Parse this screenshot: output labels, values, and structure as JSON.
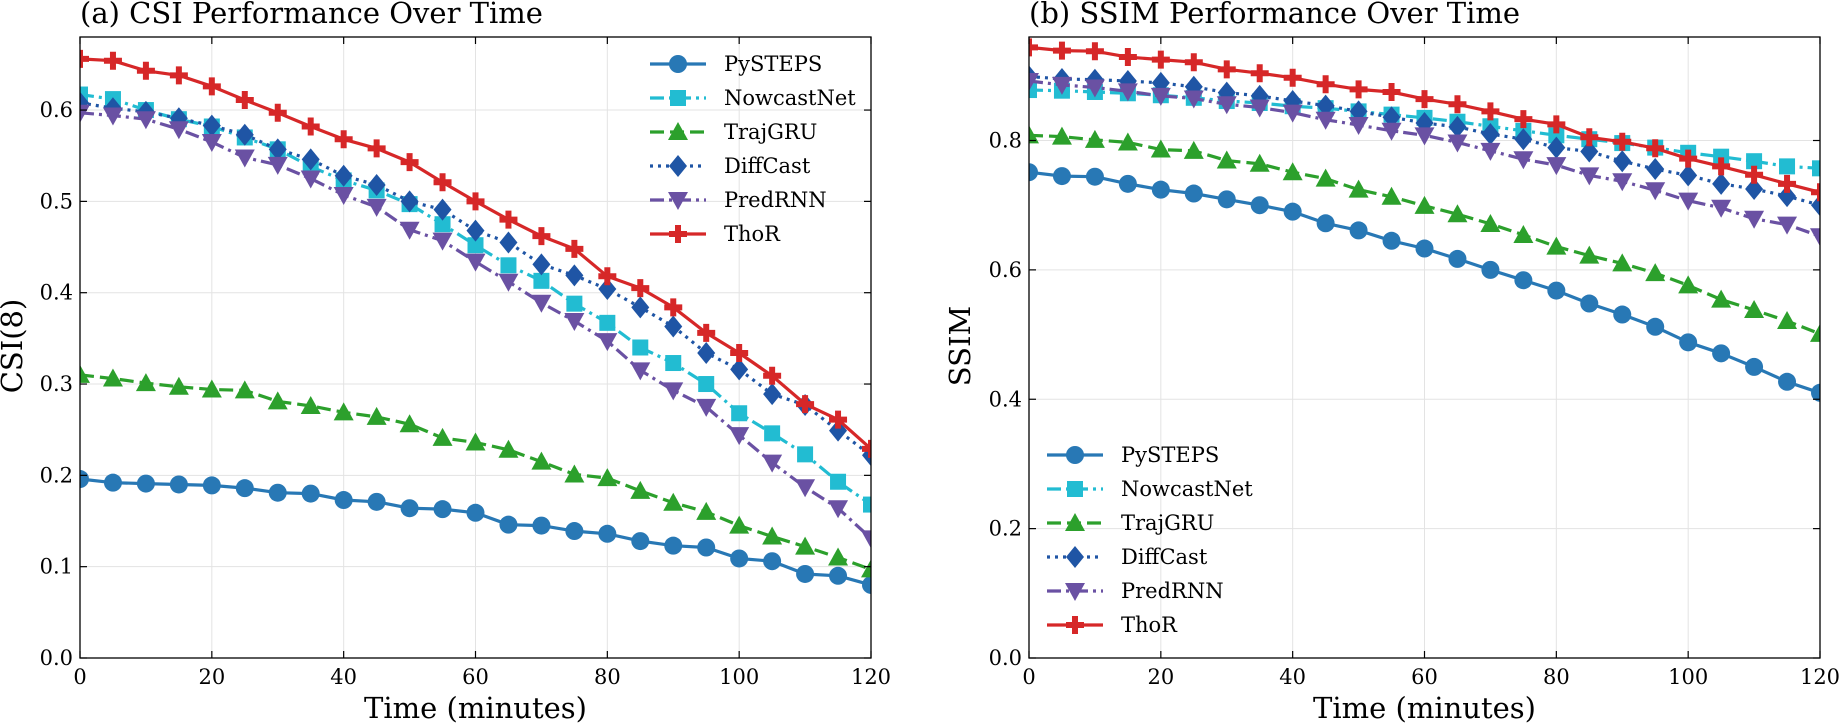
{
  "chart_data": [
    {
      "type": "line",
      "title": "(a) CSI Performance Over Time",
      "xlabel": "Time (minutes)",
      "ylabel": "CSI(8)",
      "xlim": [
        0,
        120
      ],
      "ylim": [
        0.0,
        0.68
      ],
      "xticks": [
        0,
        20,
        40,
        60,
        80,
        100,
        120
      ],
      "xtick_labels": [
        "0",
        "20",
        "40",
        "60",
        "80",
        "100",
        "120"
      ],
      "yticks": [
        0.0,
        0.1,
        0.2,
        0.3,
        0.4,
        0.5,
        0.6
      ],
      "ytick_labels": [
        "0.0",
        "0.1",
        "0.2",
        "0.3",
        "0.4",
        "0.5",
        "0.6"
      ],
      "grid": true,
      "legend_position": "top-right",
      "x": [
        0,
        5,
        10,
        15,
        20,
        25,
        30,
        35,
        40,
        45,
        50,
        55,
        60,
        65,
        70,
        75,
        80,
        85,
        90,
        95,
        100,
        105,
        110,
        115,
        120
      ],
      "series": [
        {
          "name": "PySTEPS",
          "color": "#2878b5",
          "marker": "circle",
          "dash": "solid",
          "values": [
            0.196,
            0.192,
            0.191,
            0.19,
            0.189,
            0.186,
            0.181,
            0.18,
            0.173,
            0.171,
            0.164,
            0.163,
            0.159,
            0.146,
            0.145,
            0.139,
            0.136,
            0.128,
            0.123,
            0.121,
            0.109,
            0.106,
            0.092,
            0.09,
            0.08
          ]
        },
        {
          "name": "NowcastNet",
          "color": "#22bcd2",
          "marker": "square",
          "dash": "dashdot",
          "values": [
            0.617,
            0.612,
            0.6,
            0.59,
            0.582,
            0.57,
            0.557,
            0.538,
            0.523,
            0.512,
            0.497,
            0.475,
            0.452,
            0.43,
            0.413,
            0.388,
            0.367,
            0.34,
            0.323,
            0.3,
            0.268,
            0.246,
            0.223,
            0.193,
            0.168
          ]
        },
        {
          "name": "TrajGRU",
          "color": "#2ca02c",
          "marker": "triangle-up",
          "dash": "dashed",
          "values": [
            0.31,
            0.306,
            0.301,
            0.297,
            0.294,
            0.293,
            0.281,
            0.276,
            0.269,
            0.264,
            0.256,
            0.241,
            0.236,
            0.228,
            0.215,
            0.201,
            0.197,
            0.183,
            0.17,
            0.16,
            0.145,
            0.133,
            0.122,
            0.11,
            0.097
          ]
        },
        {
          "name": "DiffCast",
          "color": "#1f55a5",
          "marker": "diamond",
          "dash": "dotted",
          "values": [
            0.608,
            0.602,
            0.598,
            0.591,
            0.583,
            0.573,
            0.557,
            0.546,
            0.528,
            0.518,
            0.5,
            0.491,
            0.468,
            0.455,
            0.431,
            0.419,
            0.404,
            0.384,
            0.363,
            0.334,
            0.316,
            0.289,
            0.277,
            0.249,
            0.222
          ]
        },
        {
          "name": "PredRNN",
          "color": "#6a51a3",
          "marker": "triangle-down",
          "dash": "dashdot",
          "values": [
            0.597,
            0.594,
            0.59,
            0.579,
            0.565,
            0.548,
            0.54,
            0.525,
            0.507,
            0.494,
            0.469,
            0.457,
            0.434,
            0.412,
            0.389,
            0.369,
            0.347,
            0.315,
            0.293,
            0.275,
            0.244,
            0.214,
            0.187,
            0.164,
            0.131
          ]
        },
        {
          "name": "ThoR",
          "color": "#d62728",
          "marker": "plus",
          "dash": "solid",
          "values": [
            0.656,
            0.654,
            0.643,
            0.638,
            0.626,
            0.611,
            0.597,
            0.582,
            0.568,
            0.558,
            0.543,
            0.521,
            0.5,
            0.48,
            0.462,
            0.448,
            0.418,
            0.405,
            0.384,
            0.356,
            0.334,
            0.309,
            0.278,
            0.261,
            0.229
          ]
        }
      ]
    },
    {
      "type": "line",
      "title": "(b) SSIM Performance Over Time",
      "xlabel": "Time (minutes)",
      "ylabel": "SSIM",
      "xlim": [
        0,
        120
      ],
      "ylim": [
        0.0,
        0.96
      ],
      "xticks": [
        0,
        20,
        40,
        60,
        80,
        100,
        120
      ],
      "xtick_labels": [
        "0",
        "20",
        "40",
        "60",
        "80",
        "100",
        "120"
      ],
      "yticks": [
        0.0,
        0.2,
        0.4,
        0.6,
        0.8
      ],
      "ytick_labels": [
        "0.0",
        "0.2",
        "0.4",
        "0.6",
        "0.8"
      ],
      "grid": true,
      "legend_position": "bottom-left",
      "x": [
        0,
        5,
        10,
        15,
        20,
        25,
        30,
        35,
        40,
        45,
        50,
        55,
        60,
        65,
        70,
        75,
        80,
        85,
        90,
        95,
        100,
        105,
        110,
        115,
        120
      ],
      "series": [
        {
          "name": "PySTEPS",
          "color": "#2878b5",
          "marker": "circle",
          "dash": "solid",
          "values": [
            0.751,
            0.745,
            0.744,
            0.733,
            0.724,
            0.718,
            0.709,
            0.7,
            0.69,
            0.672,
            0.661,
            0.645,
            0.633,
            0.617,
            0.6,
            0.584,
            0.568,
            0.548,
            0.531,
            0.512,
            0.488,
            0.471,
            0.45,
            0.427,
            0.41
          ]
        },
        {
          "name": "NowcastNet",
          "color": "#22bcd2",
          "marker": "square",
          "dash": "dashdot",
          "values": [
            0.878,
            0.877,
            0.875,
            0.873,
            0.87,
            0.866,
            0.861,
            0.858,
            0.853,
            0.85,
            0.845,
            0.84,
            0.835,
            0.829,
            0.822,
            0.815,
            0.808,
            0.802,
            0.796,
            0.789,
            0.781,
            0.775,
            0.768,
            0.76,
            0.757
          ]
        },
        {
          "name": "TrajGRU",
          "color": "#2ca02c",
          "marker": "triangle-up",
          "dash": "dashed",
          "values": [
            0.808,
            0.806,
            0.801,
            0.797,
            0.786,
            0.784,
            0.769,
            0.764,
            0.751,
            0.741,
            0.724,
            0.713,
            0.699,
            0.686,
            0.671,
            0.654,
            0.636,
            0.622,
            0.61,
            0.595,
            0.576,
            0.554,
            0.538,
            0.521,
            0.501
          ]
        },
        {
          "name": "DiffCast",
          "color": "#1f55a5",
          "marker": "diamond",
          "dash": "dotted",
          "values": [
            0.899,
            0.895,
            0.894,
            0.892,
            0.889,
            0.883,
            0.874,
            0.869,
            0.861,
            0.854,
            0.845,
            0.836,
            0.827,
            0.821,
            0.81,
            0.802,
            0.789,
            0.783,
            0.768,
            0.756,
            0.746,
            0.733,
            0.725,
            0.714,
            0.7
          ]
        },
        {
          "name": "PredRNN",
          "color": "#6a51a3",
          "marker": "triangle-down",
          "dash": "dashdot",
          "values": [
            0.892,
            0.886,
            0.882,
            0.876,
            0.869,
            0.865,
            0.856,
            0.851,
            0.843,
            0.832,
            0.824,
            0.815,
            0.808,
            0.797,
            0.784,
            0.771,
            0.762,
            0.746,
            0.737,
            0.723,
            0.707,
            0.696,
            0.679,
            0.67,
            0.652
          ]
        },
        {
          "name": "ThoR",
          "color": "#d62728",
          "marker": "plus",
          "dash": "solid",
          "values": [
            0.944,
            0.939,
            0.938,
            0.929,
            0.925,
            0.921,
            0.91,
            0.904,
            0.897,
            0.887,
            0.879,
            0.875,
            0.864,
            0.856,
            0.845,
            0.833,
            0.825,
            0.805,
            0.798,
            0.788,
            0.772,
            0.76,
            0.747,
            0.733,
            0.72
          ]
        }
      ]
    }
  ]
}
